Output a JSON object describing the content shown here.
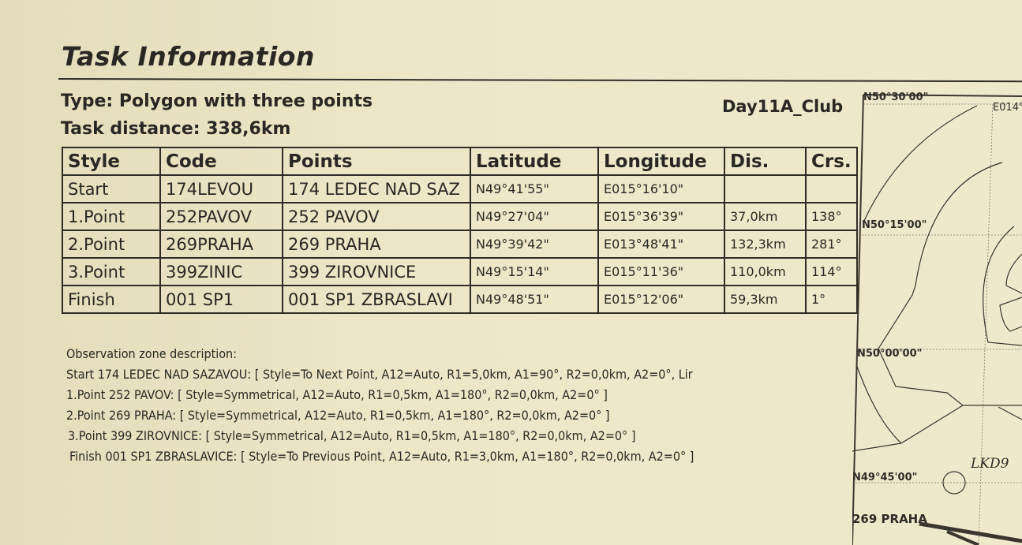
{
  "header": {
    "title": "Task Information",
    "type": "Type: Polygon with three points",
    "distance": "Task distance: 338,6km",
    "task_name": "Day11A_Club"
  },
  "table": {
    "columns": [
      "Style",
      "Code",
      "Points",
      "Latitude",
      "Longitude",
      "Dis.",
      "Crs."
    ],
    "rows": [
      [
        "Start",
        "174LEVOU",
        "174 LEDEC NAD SAZ",
        "N49°41'55\"",
        "E015°16'10\"",
        "",
        ""
      ],
      [
        "1.Point",
        "252PAVOV",
        "252 PAVOV",
        "N49°27'04\"",
        "E015°36'39\"",
        "37,0km",
        "138°"
      ],
      [
        "2.Point",
        "269PRAHA",
        "269 PRAHA",
        "N49°39'42\"",
        "E013°48'41\"",
        "132,3km",
        "281°"
      ],
      [
        "3.Point",
        "399ZINIC",
        "399 ZIROVNICE",
        "N49°15'14\"",
        "E015°11'36\"",
        "110,0km",
        "114°"
      ],
      [
        "Finish",
        "001 SP1",
        "001 SP1 ZBRASLAVI",
        "N49°48'51\"",
        "E015°12'06\"",
        "59,3km",
        "1°"
      ]
    ]
  },
  "observation": {
    "heading": "Observation zone description:",
    "lines": [
      "Start 174 LEDEC NAD SAZAVOU: [ Style=To Next Point, A12=Auto, R1=5,0km, A1=90°, R2=0,0km, A2=0°, Lir",
      "1.Point 252 PAVOV: [ Style=Symmetrical, A12=Auto, R1=0,5km, A1=180°, R2=0,0km, A2=0° ]",
      "2.Point 269 PRAHA: [ Style=Symmetrical, A12=Auto, R1=0,5km, A1=180°, R2=0,0km, A2=0° ]",
      "3.Point 399 ZIROVNICE: [ Style=Symmetrical, A12=Auto, R1=0,5km, A1=180°, R2=0,0km, A2=0° ]",
      "Finish 001 SP1 ZBRASLAVICE: [ Style=To Previous Point, A12=Auto, R1=3,0km, A1=180°, R2=0,0km, A2=0° ]"
    ]
  },
  "map": {
    "lat_labels": [
      "N50°30'00\"",
      "N50°15'00\"",
      "N50°00'00\"",
      "N49°45'00\""
    ],
    "lon_label": "E014°",
    "point_label": "269 PRAHA",
    "handwritten": "LKD9"
  }
}
